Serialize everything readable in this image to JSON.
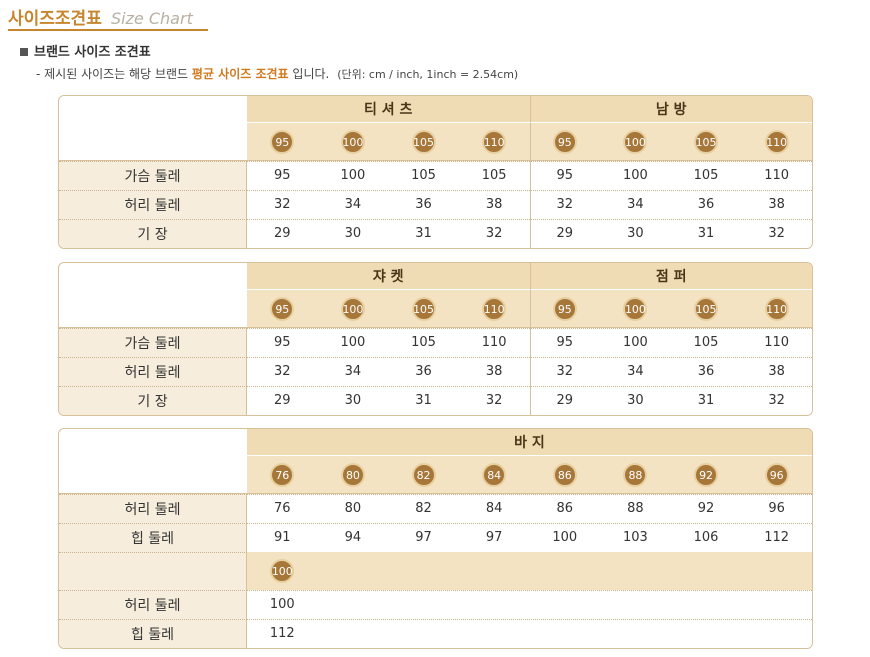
{
  "header": {
    "title": "사이즈조견표",
    "subtitle": "Size Chart"
  },
  "section_title": "브랜드 사이즈 조견표",
  "note": {
    "before": "- 제시된 사이즈는 해당 브랜드",
    "highlight": "평균 사이즈 조견표",
    "after": "입니다.",
    "unit": "(단위: cm / inch, 1inch = 2.54cm)"
  },
  "tables": [
    {
      "groups": [
        {
          "name": "티 셔 츠",
          "sizes": [
            95,
            100,
            105,
            110
          ]
        },
        {
          "name": "남 방",
          "sizes": [
            95,
            100,
            105,
            110
          ]
        }
      ],
      "rows": [
        {
          "label": "가슴 둘레",
          "values": [
            95,
            100,
            105,
            105,
            95,
            100,
            105,
            110
          ]
        },
        {
          "label": "허리 둘레",
          "values": [
            32,
            34,
            36,
            38,
            32,
            34,
            36,
            38
          ]
        },
        {
          "label": "기 장",
          "values": [
            29,
            30,
            31,
            32,
            29,
            30,
            31,
            32
          ]
        }
      ]
    },
    {
      "groups": [
        {
          "name": "쟈 켓",
          "sizes": [
            95,
            100,
            105,
            110
          ]
        },
        {
          "name": "점 퍼",
          "sizes": [
            95,
            100,
            105,
            110
          ]
        }
      ],
      "rows": [
        {
          "label": "가슴 둘레",
          "values": [
            95,
            100,
            105,
            110,
            95,
            100,
            105,
            110
          ]
        },
        {
          "label": "허리 둘레",
          "values": [
            32,
            34,
            36,
            38,
            32,
            34,
            36,
            38
          ]
        },
        {
          "label": "기 장",
          "values": [
            29,
            30,
            31,
            32,
            29,
            30,
            31,
            32
          ]
        }
      ]
    },
    {
      "groups": [
        {
          "name": "바 지",
          "sizes": [
            76,
            80,
            82,
            84,
            86,
            88,
            92,
            96
          ]
        }
      ],
      "rows": [
        {
          "label": "허리 둘레",
          "values": [
            76,
            80,
            82,
            84,
            86,
            88,
            92,
            96
          ]
        },
        {
          "label": "힙 둘레",
          "values": [
            91,
            94,
            97,
            97,
            100,
            103,
            106,
            112
          ]
        }
      ],
      "extra": {
        "sizes": [
          100
        ],
        "rows": [
          {
            "label": "허리 둘레",
            "values": [
              100
            ]
          },
          {
            "label": "힙 둘레",
            "values": [
              112
            ]
          }
        ]
      }
    }
  ]
}
